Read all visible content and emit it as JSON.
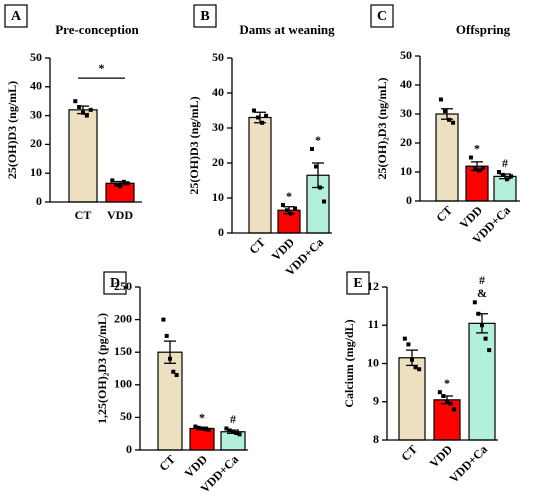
{
  "chart_data": [
    {
      "type": "bar",
      "letter": "A",
      "title": "Pre-conception",
      "ylabel": "25(OH)D3 (ng/mL)",
      "categories": [
        "CT",
        "VDD"
      ],
      "colors": [
        "#ede0c0",
        "#ff0000"
      ],
      "values": [
        32,
        6.5
      ],
      "errors": [
        1.3,
        0.6
      ],
      "points": [
        [
          35,
          33,
          31,
          30,
          32
        ],
        [
          7.5,
          6,
          5.5,
          7,
          6.5
        ]
      ],
      "bracket_annotation": "*",
      "annotations": [
        [],
        []
      ],
      "ylim": [
        0,
        50
      ],
      "yticks": [
        0,
        10,
        20,
        30,
        40,
        50
      ]
    },
    {
      "type": "bar",
      "letter": "B",
      "title": "Dams at weaning",
      "ylabel": "25(OH)D3 (ng/mL)",
      "categories": [
        "CT",
        "VDD",
        "VDD+Ca"
      ],
      "colors": [
        "#ede0c0",
        "#ff0000",
        "#b3f0dc"
      ],
      "values": [
        33,
        6.5,
        16.5
      ],
      "errors": [
        1.5,
        1,
        3.5
      ],
      "points": [
        [
          35,
          33,
          31.5,
          33.5
        ],
        [
          8,
          6.5,
          5.5,
          7
        ],
        [
          24,
          19,
          13,
          9
        ]
      ],
      "annotations": [
        [],
        [
          "*"
        ],
        [
          "*"
        ]
      ],
      "ylim": [
        0,
        50
      ],
      "yticks": [
        0,
        10,
        20,
        30,
        40,
        50
      ]
    },
    {
      "type": "bar",
      "letter": "C",
      "title": "Offspring",
      "ylabel": "25(OH)₂D3 (ng/mL)",
      "categories": [
        "CT",
        "VDD",
        "VDD+Ca"
      ],
      "colors": [
        "#ede0c0",
        "#ff0000",
        "#b3f0dc"
      ],
      "values": [
        30,
        12,
        8.5
      ],
      "errors": [
        1.8,
        1.5,
        0.8
      ],
      "points": [
        [
          35,
          31,
          28,
          27
        ],
        [
          15,
          11,
          10.5,
          11.5
        ],
        [
          10,
          9,
          7.5,
          8.5
        ]
      ],
      "annotations": [
        [],
        [
          "*"
        ],
        [
          "#"
        ]
      ],
      "ylim": [
        0,
        50
      ],
      "yticks": [
        0,
        10,
        20,
        30,
        40,
        50
      ]
    },
    {
      "type": "bar",
      "letter": "D",
      "ylabel": "1,25(OH)₂D3 (pg/mL)",
      "categories": [
        "CT",
        "VDD",
        "VDD+Ca"
      ],
      "colors": [
        "#ede0c0",
        "#ff0000",
        "#b3f0dc"
      ],
      "values": [
        150,
        33,
        28
      ],
      "errors": [
        17,
        2,
        2.5
      ],
      "points": [
        [
          200,
          175,
          140,
          120,
          115
        ],
        [
          36,
          34,
          33,
          32,
          31
        ],
        [
          33,
          30,
          28,
          26,
          24
        ]
      ],
      "annotations": [
        [],
        [
          "*"
        ],
        [
          "#"
        ]
      ],
      "ylim": [
        0,
        250
      ],
      "yticks": [
        0,
        50,
        100,
        150,
        200,
        250
      ]
    },
    {
      "type": "bar",
      "letter": "E",
      "ylabel": "Calcium (mg/dL)",
      "categories": [
        "CT",
        "VDD",
        "VDD+Ca"
      ],
      "colors": [
        "#ede0c0",
        "#ff0000",
        "#b3f0dc"
      ],
      "values": [
        10.15,
        9.05,
        11.05
      ],
      "errors": [
        0.2,
        0.1,
        0.25
      ],
      "points": [
        [
          10.65,
          10.5,
          10.1,
          9.9,
          9.85
        ],
        [
          9.25,
          9.15,
          9.0,
          8.95,
          8.8
        ],
        [
          11.6,
          11.3,
          11.0,
          10.65,
          10.35
        ]
      ],
      "annotations": [
        [],
        [
          "*"
        ],
        [
          "#",
          "&"
        ]
      ],
      "ylim": [
        8,
        12
      ],
      "yticks": [
        8,
        9,
        10,
        11,
        12
      ]
    }
  ]
}
